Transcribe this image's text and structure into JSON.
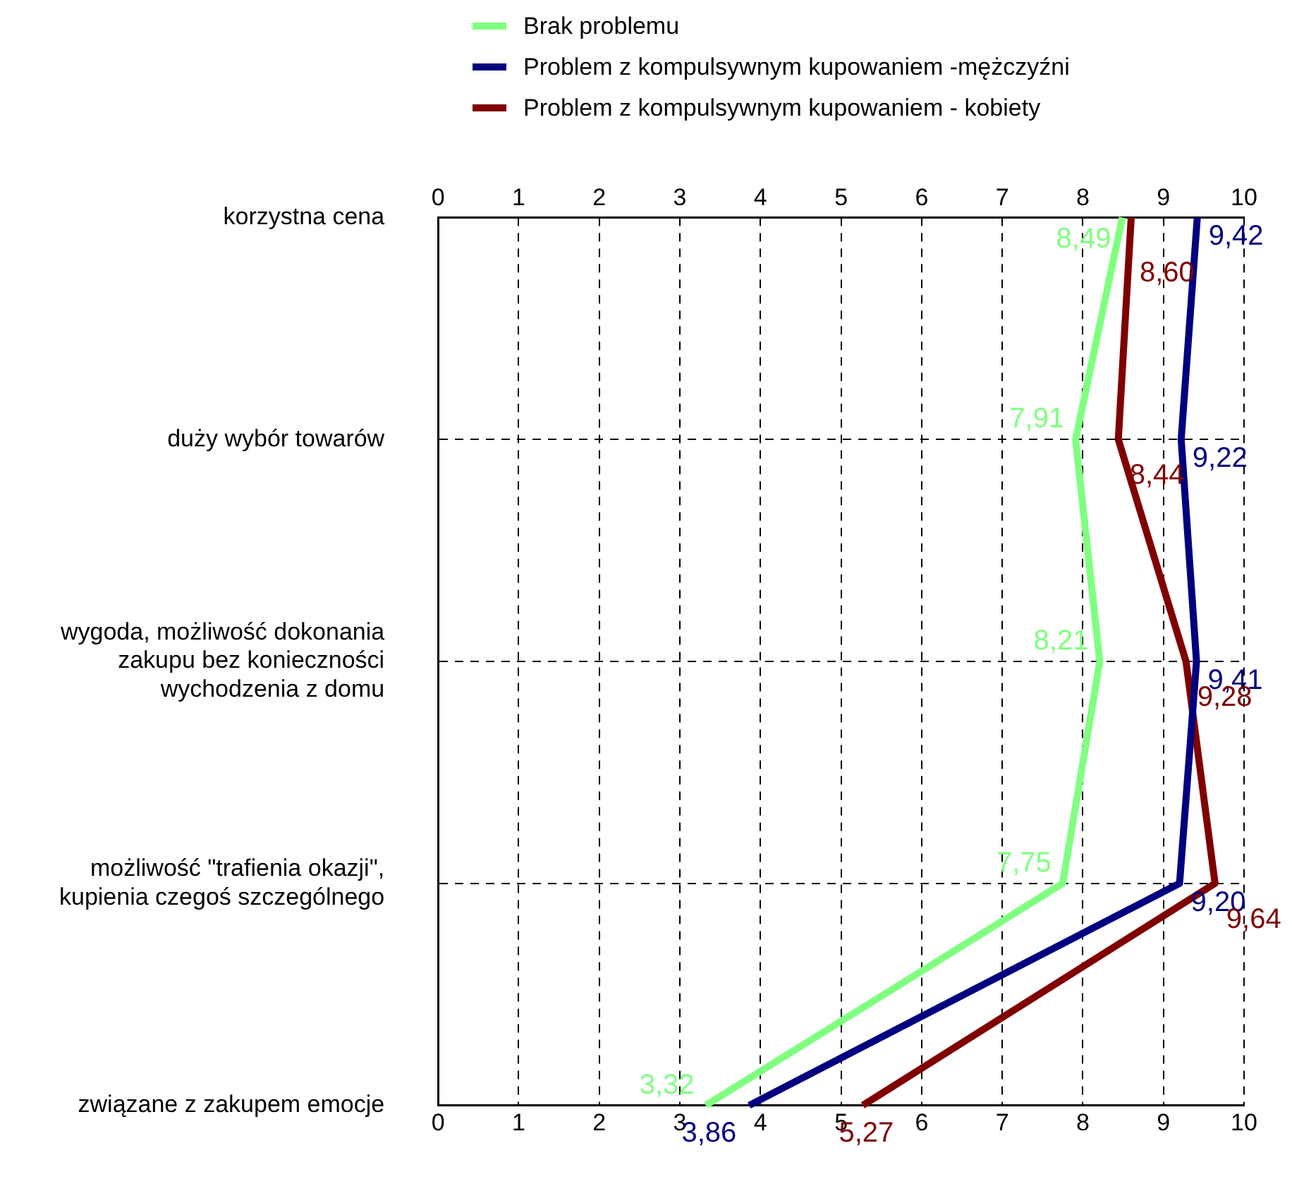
{
  "chart_data": {
    "type": "line",
    "orientation": "horizontal",
    "categories": [
      "korzystna cena",
      "duży wybór towarów",
      "wygoda, możliwość dokonania\nzakupu bez konieczności\nwychodzenia z domu",
      "możliwość \"trafienia okazji\",\nkupienia czegoś szczególnego",
      "związane z zakupem emocje"
    ],
    "series": [
      {
        "name": "Brak problemu",
        "color": "#80ff80",
        "values": [
          8.49,
          7.91,
          8.21,
          7.75,
          3.32
        ],
        "value_labels": [
          "8,49",
          "7,91",
          "8,21",
          "7,75",
          "3,32"
        ]
      },
      {
        "name": "Problem z kompulsywnym kupowaniem -mężczyźni",
        "color": "#000080",
        "values": [
          9.42,
          9.22,
          9.41,
          9.2,
          3.86
        ],
        "value_labels": [
          "9,42",
          "9,22",
          "9,41",
          "9,20",
          "3,86"
        ]
      },
      {
        "name": "Problem z kompulsywnym kupowaniem - kobiety",
        "color": "#800000",
        "values": [
          8.6,
          8.44,
          9.28,
          9.64,
          5.27
        ],
        "value_labels": [
          "8,60",
          "8,44",
          "9,28",
          "9,64",
          "5,27"
        ]
      }
    ],
    "xlim": [
      0,
      10
    ],
    "xticks": [
      0,
      1,
      2,
      3,
      4,
      5,
      6,
      7,
      8,
      9,
      10
    ],
    "x2lim": [
      0,
      10
    ],
    "x2ticks": [
      0,
      1,
      2,
      3,
      4,
      5,
      6,
      7,
      8,
      9,
      10
    ],
    "grid": true,
    "legend": "top",
    "marker": "none",
    "line_style": "solid"
  }
}
